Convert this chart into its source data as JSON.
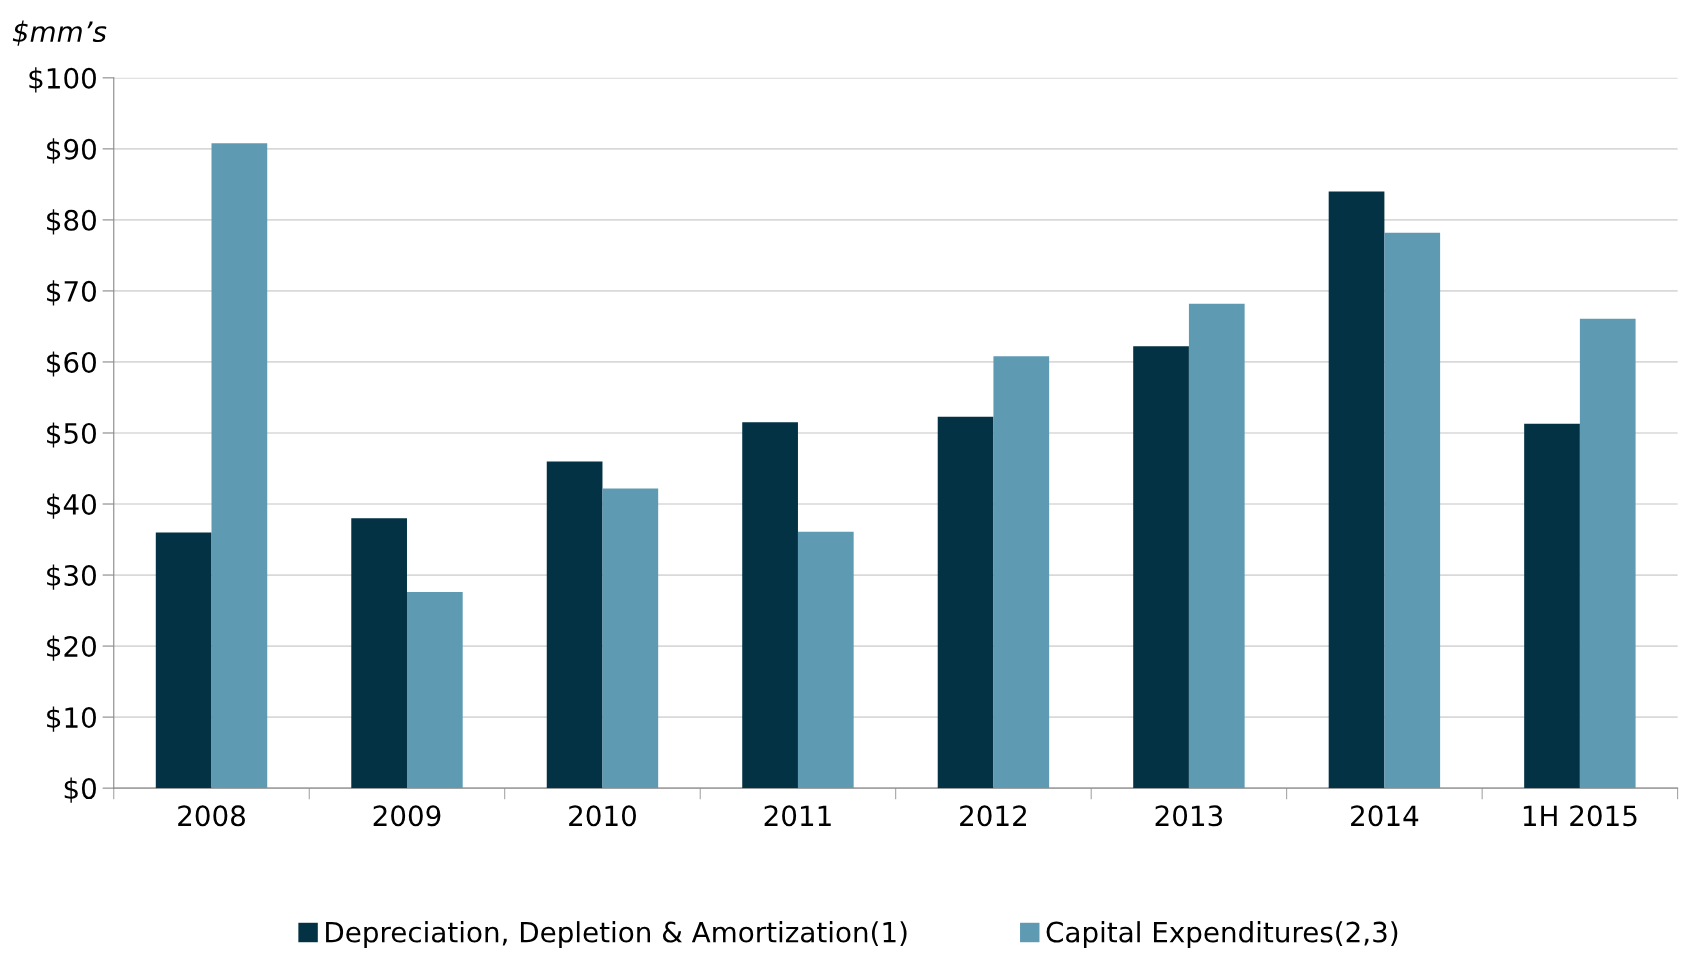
{
  "chart_data": {
    "type": "bar",
    "ylabel": "$mm’s",
    "categories": [
      "2008",
      "2009",
      "2010",
      "2011",
      "2012",
      "2013",
      "2014",
      "1H 2015"
    ],
    "series": [
      {
        "name": "Depreciation, Depletion & Amortization(1)",
        "color": "#023243",
        "values": [
          36,
          38,
          46,
          51.5,
          52.3,
          62.2,
          84,
          51.3
        ]
      },
      {
        "name": "Capital Expenditures(2,3)",
        "color": "#5e9bb3",
        "values": [
          90.8,
          27.6,
          42.2,
          36.1,
          60.8,
          68.2,
          78.2,
          66.1
        ]
      }
    ],
    "ylim": [
      0,
      100
    ],
    "yticks": [
      {
        "value": 0,
        "label": "$0"
      },
      {
        "value": 10,
        "label": "$10"
      },
      {
        "value": 20,
        "label": "$20"
      },
      {
        "value": 30,
        "label": "$30"
      },
      {
        "value": 40,
        "label": "$40"
      },
      {
        "value": 50,
        "label": "$50"
      },
      {
        "value": 60,
        "label": "$60"
      },
      {
        "value": 70,
        "label": "$70"
      },
      {
        "value": 80,
        "label": "$80"
      },
      {
        "value": 90,
        "label": "$90"
      },
      {
        "value": 100,
        "label": "$100"
      }
    ],
    "grid": "y",
    "legend": "bottom"
  }
}
